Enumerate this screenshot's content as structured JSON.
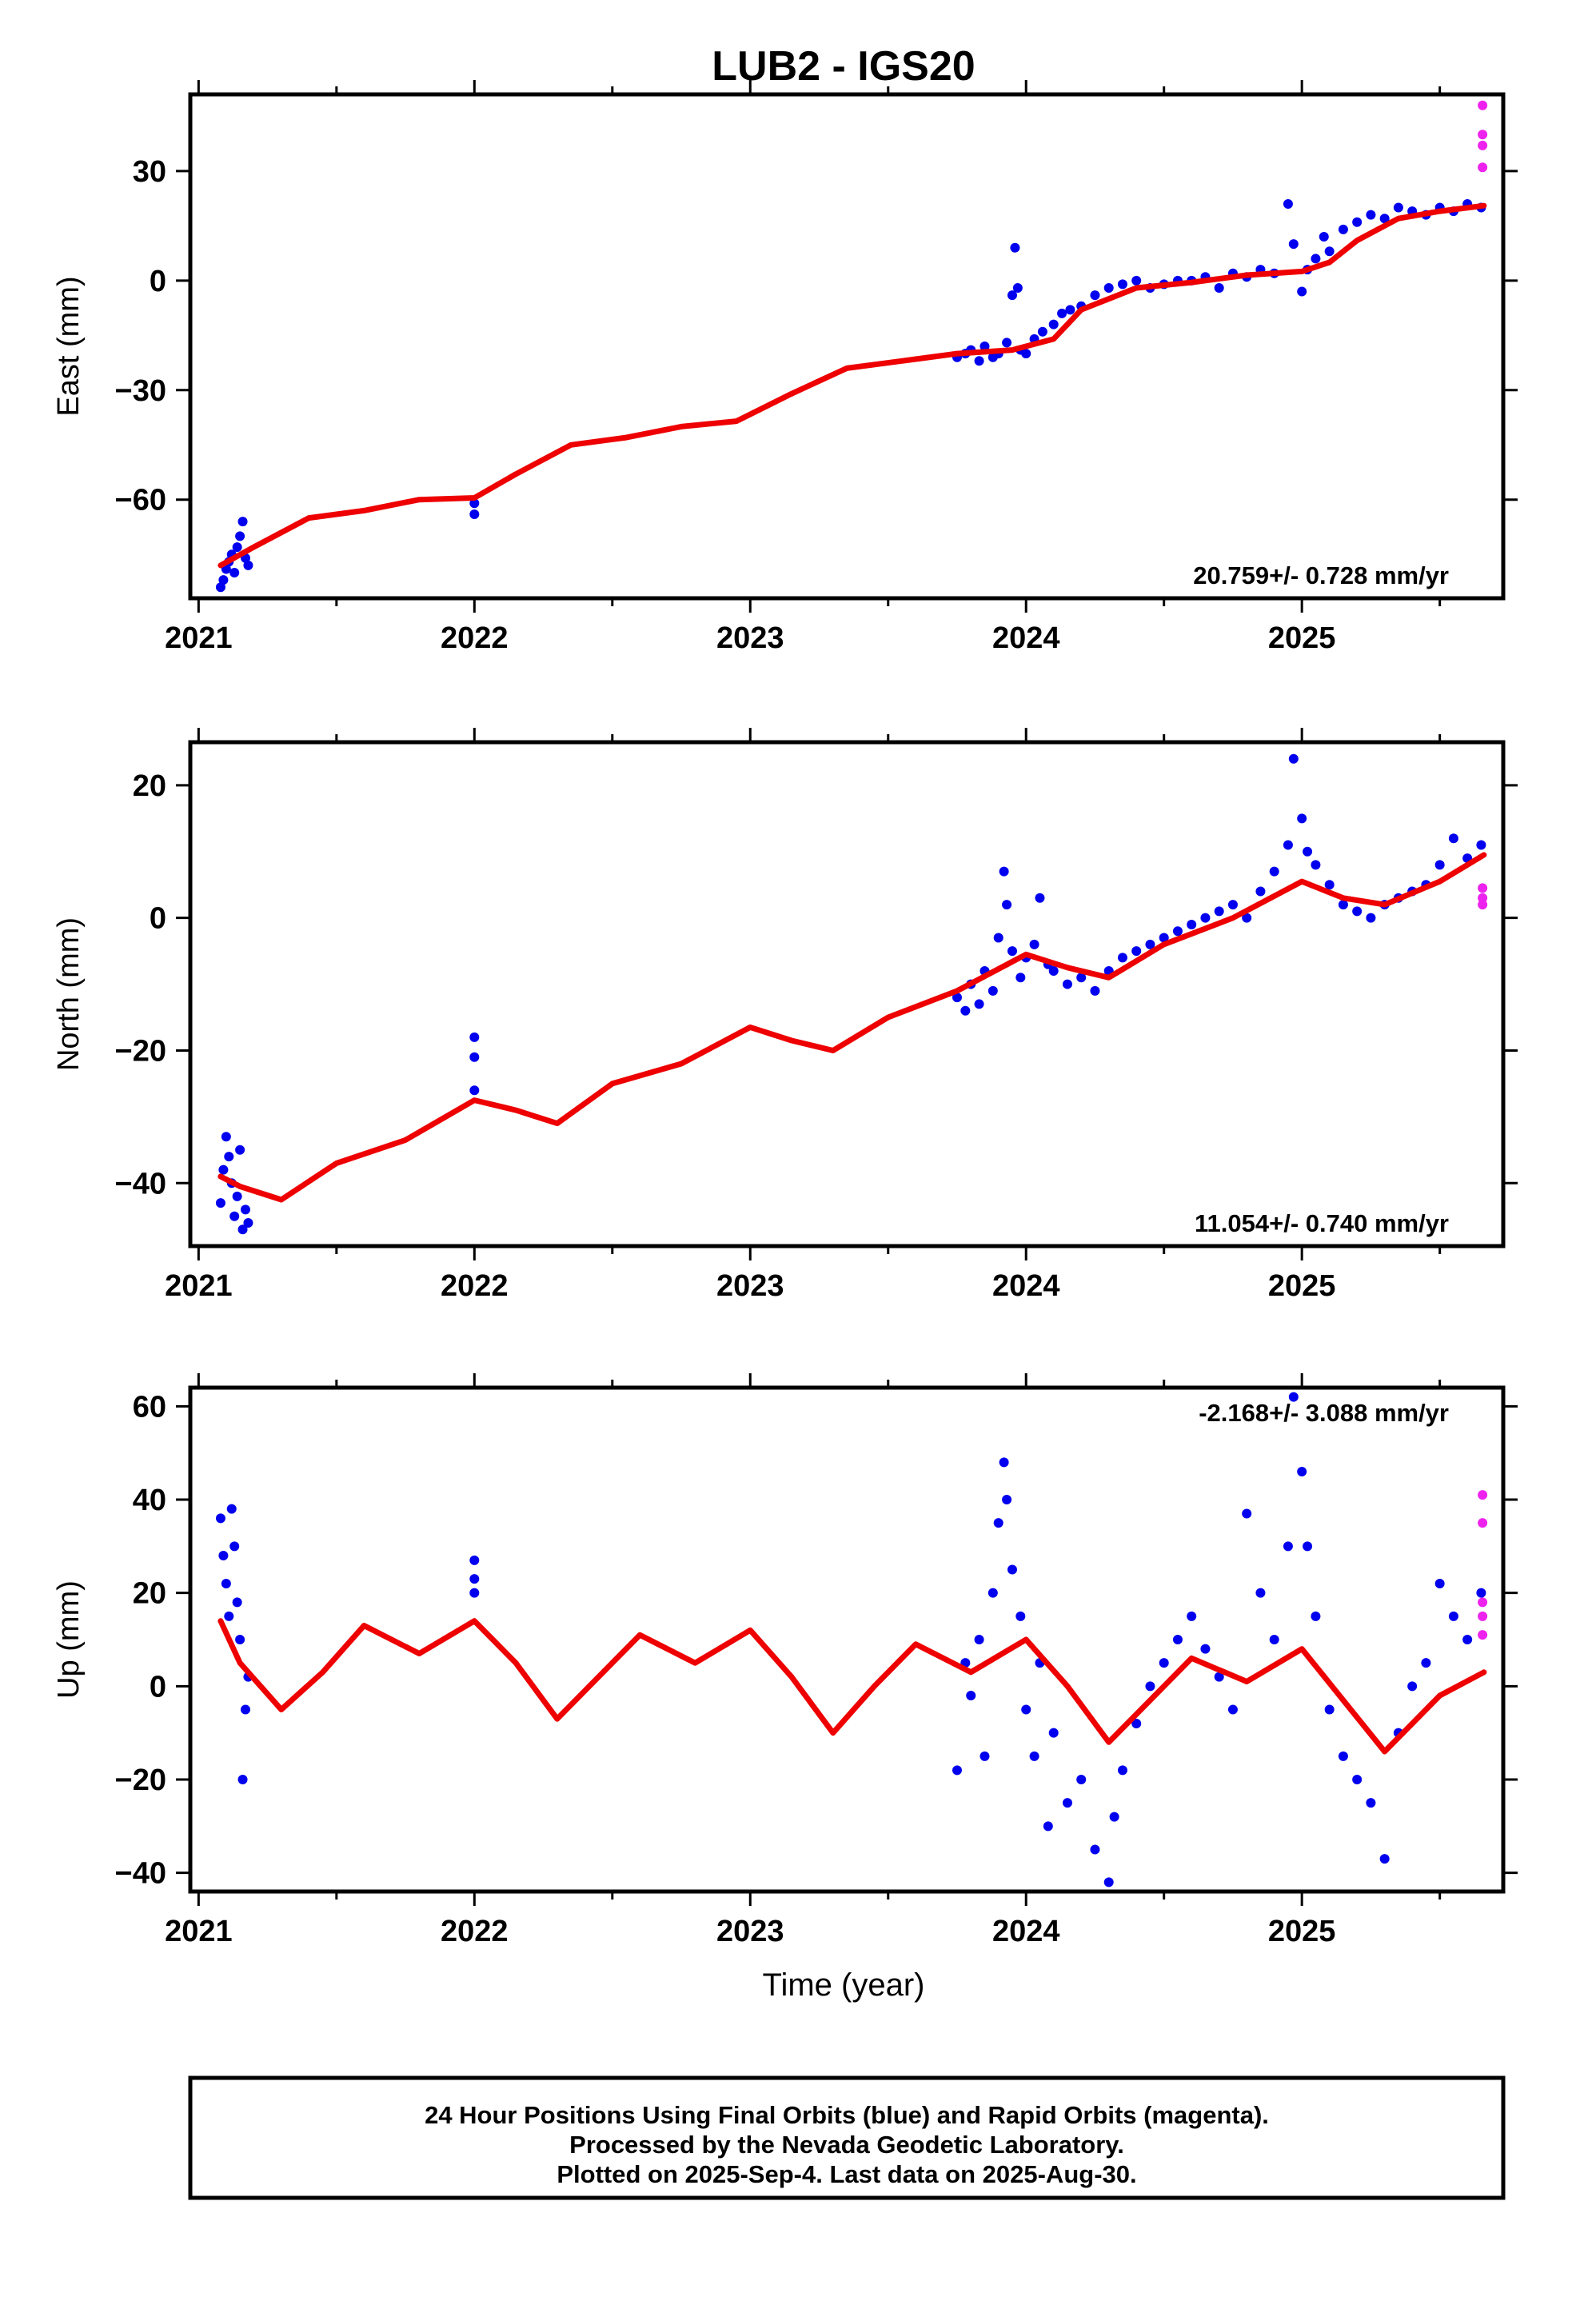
{
  "title": "LUB2 - IGS20",
  "footer": {
    "lines": [
      "24 Hour Positions Using Final Orbits (blue) and Rapid Orbits (magenta).",
      "Processed by the Nevada Geodetic Laboratory.",
      "Plotted on 2025-Sep-4. Last data on 2025-Aug-30."
    ]
  },
  "colors": {
    "final": "#0000ee",
    "rapid": "#ee22ee",
    "model": "#ee0000",
    "axis": "#000000"
  },
  "chart_data": [
    {
      "type": "scatter",
      "name": "east",
      "ylabel": "East (mm)",
      "xlabel": "",
      "xlim": [
        2020.97,
        2025.73
      ],
      "ylim": [
        -87,
        51
      ],
      "yticks": [
        "-60",
        "-30",
        "0",
        "30"
      ],
      "xticks": [
        "2021",
        "2022",
        "2023",
        "2024",
        "2025"
      ],
      "rate_label": "20.759+/- 0.728 mm/yr",
      "model": {
        "x": [
          2021.08,
          2021.2,
          2021.4,
          2021.6,
          2021.8,
          2022.0,
          2022.15,
          2022.35,
          2022.55,
          2022.75,
          2022.95,
          2023.15,
          2023.35,
          2023.55,
          2023.75,
          2023.95,
          2024.1,
          2024.2,
          2024.4,
          2024.6,
          2024.8,
          2025.0,
          2025.1,
          2025.2,
          2025.35,
          2025.5,
          2025.66
        ],
        "y": [
          -78,
          -73,
          -65,
          -63,
          -60,
          -59.5,
          -53,
          -45,
          -43,
          -40,
          -38.5,
          -31,
          -24,
          -22,
          -20,
          -19,
          -16,
          -8,
          -2,
          -0.5,
          1.5,
          2.5,
          5,
          11,
          17,
          19,
          20.5
        ]
      },
      "final_note": "blue points: 24h final-orbit positions",
      "final": [
        [
          2021.08,
          -84
        ],
        [
          2021.09,
          -82
        ],
        [
          2021.1,
          -79
        ],
        [
          2021.11,
          -77
        ],
        [
          2021.12,
          -75
        ],
        [
          2021.13,
          -80
        ],
        [
          2021.14,
          -73
        ],
        [
          2021.15,
          -70
        ],
        [
          2021.16,
          -66
        ],
        [
          2021.17,
          -76
        ],
        [
          2021.18,
          -78
        ],
        [
          2022.0,
          -61
        ],
        [
          2022.0,
          -64
        ],
        [
          2023.75,
          -21
        ],
        [
          2023.78,
          -20
        ],
        [
          2023.8,
          -19
        ],
        [
          2023.83,
          -22
        ],
        [
          2023.85,
          -18
        ],
        [
          2023.88,
          -21
        ],
        [
          2023.9,
          -20
        ],
        [
          2023.93,
          -17
        ],
        [
          2023.95,
          -4
        ],
        [
          2023.96,
          9
        ],
        [
          2023.97,
          -2
        ],
        [
          2023.98,
          -19
        ],
        [
          2024.0,
          -20
        ],
        [
          2024.03,
          -16
        ],
        [
          2024.06,
          -14
        ],
        [
          2024.1,
          -12
        ],
        [
          2024.13,
          -9
        ],
        [
          2024.16,
          -8
        ],
        [
          2024.2,
          -7
        ],
        [
          2024.25,
          -4
        ],
        [
          2024.3,
          -2
        ],
        [
          2024.35,
          -1
        ],
        [
          2024.4,
          0
        ],
        [
          2024.45,
          -2
        ],
        [
          2024.5,
          -1
        ],
        [
          2024.55,
          0
        ],
        [
          2024.6,
          0
        ],
        [
          2024.65,
          1
        ],
        [
          2024.7,
          -2
        ],
        [
          2024.75,
          2
        ],
        [
          2024.8,
          1
        ],
        [
          2024.85,
          3
        ],
        [
          2024.9,
          2
        ],
        [
          2024.95,
          21
        ],
        [
          2024.97,
          10
        ],
        [
          2025.0,
          -3
        ],
        [
          2025.02,
          3
        ],
        [
          2025.05,
          6
        ],
        [
          2025.08,
          12
        ],
        [
          2025.1,
          8
        ],
        [
          2025.15,
          14
        ],
        [
          2025.2,
          16
        ],
        [
          2025.25,
          18
        ],
        [
          2025.3,
          17
        ],
        [
          2025.35,
          20
        ],
        [
          2025.4,
          19
        ],
        [
          2025.45,
          18
        ],
        [
          2025.5,
          20
        ],
        [
          2025.55,
          19
        ],
        [
          2025.6,
          21
        ],
        [
          2025.65,
          20
        ]
      ],
      "rapid": [
        [
          2025.655,
          48
        ],
        [
          2025.655,
          40
        ],
        [
          2025.655,
          37
        ],
        [
          2025.655,
          31
        ]
      ]
    },
    {
      "type": "scatter",
      "name": "north",
      "ylabel": "North (mm)",
      "xlabel": "",
      "xlim": [
        2020.97,
        2025.73
      ],
      "ylim": [
        -49.5,
        26.5
      ],
      "yticks": [
        "-40",
        "-20",
        "0",
        "20"
      ],
      "xticks": [
        "2021",
        "2022",
        "2023",
        "2024",
        "2025"
      ],
      "rate_label": "11.054+/- 0.740 mm/yr",
      "model": {
        "x": [
          2021.08,
          2021.15,
          2021.3,
          2021.5,
          2021.75,
          2022.0,
          2022.15,
          2022.3,
          2022.5,
          2022.75,
          2023.0,
          2023.15,
          2023.3,
          2023.5,
          2023.75,
          2024.0,
          2024.15,
          2024.3,
          2024.5,
          2024.75,
          2025.0,
          2025.15,
          2025.3,
          2025.5,
          2025.66
        ],
        "y": [
          -39,
          -40.5,
          -42.5,
          -37,
          -33.5,
          -27.5,
          -29,
          -31,
          -25,
          -22,
          -16.5,
          -18.5,
          -20,
          -15,
          -11,
          -5.5,
          -7.5,
          -9,
          -4,
          0,
          5.5,
          3,
          2,
          5.5,
          9.5
        ]
      },
      "final": [
        [
          2021.08,
          -43
        ],
        [
          2021.09,
          -38
        ],
        [
          2021.1,
          -33
        ],
        [
          2021.11,
          -36
        ],
        [
          2021.12,
          -40
        ],
        [
          2021.13,
          -45
        ],
        [
          2021.14,
          -42
        ],
        [
          2021.15,
          -35
        ],
        [
          2021.16,
          -47
        ],
        [
          2021.17,
          -44
        ],
        [
          2021.18,
          -46
        ],
        [
          2022.0,
          -18
        ],
        [
          2022.0,
          -21
        ],
        [
          2022.0,
          -26
        ],
        [
          2023.75,
          -12
        ],
        [
          2023.78,
          -14
        ],
        [
          2023.8,
          -10
        ],
        [
          2023.83,
          -13
        ],
        [
          2023.85,
          -8
        ],
        [
          2023.88,
          -11
        ],
        [
          2023.9,
          -3
        ],
        [
          2023.92,
          7
        ],
        [
          2023.93,
          2
        ],
        [
          2023.95,
          -5
        ],
        [
          2023.98,
          -9
        ],
        [
          2024.0,
          -6
        ],
        [
          2024.03,
          -4
        ],
        [
          2024.05,
          3
        ],
        [
          2024.08,
          -7
        ],
        [
          2024.1,
          -8
        ],
        [
          2024.15,
          -10
        ],
        [
          2024.2,
          -9
        ],
        [
          2024.25,
          -11
        ],
        [
          2024.3,
          -8
        ],
        [
          2024.35,
          -6
        ],
        [
          2024.4,
          -5
        ],
        [
          2024.45,
          -4
        ],
        [
          2024.5,
          -3
        ],
        [
          2024.55,
          -2
        ],
        [
          2024.6,
          -1
        ],
        [
          2024.65,
          0
        ],
        [
          2024.7,
          1
        ],
        [
          2024.75,
          2
        ],
        [
          2024.8,
          0
        ],
        [
          2024.85,
          4
        ],
        [
          2024.9,
          7
        ],
        [
          2024.95,
          11
        ],
        [
          2024.97,
          24
        ],
        [
          2025.0,
          15
        ],
        [
          2025.02,
          10
        ],
        [
          2025.05,
          8
        ],
        [
          2025.1,
          5
        ],
        [
          2025.15,
          2
        ],
        [
          2025.2,
          1
        ],
        [
          2025.25,
          0
        ],
        [
          2025.3,
          2
        ],
        [
          2025.35,
          3
        ],
        [
          2025.4,
          4
        ],
        [
          2025.45,
          5
        ],
        [
          2025.5,
          8
        ],
        [
          2025.55,
          12
        ],
        [
          2025.6,
          9
        ],
        [
          2025.65,
          11
        ]
      ],
      "rapid": [
        [
          2025.655,
          4.5
        ],
        [
          2025.655,
          3
        ],
        [
          2025.655,
          2
        ]
      ]
    },
    {
      "type": "scatter",
      "name": "up",
      "ylabel": "Up (mm)",
      "xlabel": "Time (year)",
      "xlim": [
        2020.97,
        2025.73
      ],
      "ylim": [
        -44,
        64
      ],
      "yticks": [
        "-40",
        "-20",
        "0",
        "20",
        "40",
        "60"
      ],
      "xticks": [
        "2021",
        "2022",
        "2023",
        "2024",
        "2025"
      ],
      "rate_label": "-2.168+/- 3.088 mm/yr",
      "model": {
        "x": [
          2021.08,
          2021.15,
          2021.3,
          2021.45,
          2021.6,
          2021.8,
          2022.0,
          2022.15,
          2022.3,
          2022.45,
          2022.6,
          2022.8,
          2023.0,
          2023.15,
          2023.3,
          2023.45,
          2023.6,
          2023.8,
          2024.0,
          2024.15,
          2024.3,
          2024.45,
          2024.6,
          2024.8,
          2025.0,
          2025.15,
          2025.3,
          2025.5,
          2025.66
        ],
        "y": [
          14,
          5,
          -5,
          3,
          13,
          7,
          14,
          5,
          -7,
          2,
          11,
          5,
          12,
          2,
          -10,
          0,
          9,
          3,
          10,
          0,
          -12,
          -3,
          6,
          1,
          8,
          -3,
          -14,
          -2,
          3
        ]
      },
      "final": [
        [
          2021.08,
          36
        ],
        [
          2021.09,
          28
        ],
        [
          2021.1,
          22
        ],
        [
          2021.11,
          15
        ],
        [
          2021.12,
          38
        ],
        [
          2021.13,
          30
        ],
        [
          2021.14,
          18
        ],
        [
          2021.15,
          10
        ],
        [
          2021.16,
          -20
        ],
        [
          2021.17,
          -5
        ],
        [
          2021.18,
          2
        ],
        [
          2022.0,
          27
        ],
        [
          2022.0,
          23
        ],
        [
          2022.0,
          20
        ],
        [
          2023.75,
          -18
        ],
        [
          2023.78,
          5
        ],
        [
          2023.8,
          -2
        ],
        [
          2023.83,
          10
        ],
        [
          2023.85,
          -15
        ],
        [
          2023.88,
          20
        ],
        [
          2023.9,
          35
        ],
        [
          2023.92,
          48
        ],
        [
          2023.93,
          40
        ],
        [
          2023.95,
          25
        ],
        [
          2023.98,
          15
        ],
        [
          2024.0,
          -5
        ],
        [
          2024.03,
          -15
        ],
        [
          2024.05,
          5
        ],
        [
          2024.08,
          -30
        ],
        [
          2024.1,
          -10
        ],
        [
          2024.15,
          -25
        ],
        [
          2024.2,
          -20
        ],
        [
          2024.25,
          -35
        ],
        [
          2024.3,
          -42
        ],
        [
          2024.32,
          -28
        ],
        [
          2024.35,
          -18
        ],
        [
          2024.4,
          -8
        ],
        [
          2024.45,
          0
        ],
        [
          2024.5,
          5
        ],
        [
          2024.55,
          10
        ],
        [
          2024.6,
          15
        ],
        [
          2024.65,
          8
        ],
        [
          2024.7,
          2
        ],
        [
          2024.75,
          -5
        ],
        [
          2024.8,
          37
        ],
        [
          2024.85,
          20
        ],
        [
          2024.9,
          10
        ],
        [
          2024.95,
          30
        ],
        [
          2024.97,
          62
        ],
        [
          2025.0,
          46
        ],
        [
          2025.02,
          30
        ],
        [
          2025.05,
          15
        ],
        [
          2025.1,
          -5
        ],
        [
          2025.15,
          -15
        ],
        [
          2025.2,
          -20
        ],
        [
          2025.25,
          -25
        ],
        [
          2025.3,
          -37
        ],
        [
          2025.35,
          -10
        ],
        [
          2025.4,
          0
        ],
        [
          2025.45,
          5
        ],
        [
          2025.5,
          22
        ],
        [
          2025.55,
          15
        ],
        [
          2025.6,
          10
        ],
        [
          2025.65,
          20
        ]
      ],
      "rapid": [
        [
          2025.655,
          41
        ],
        [
          2025.655,
          35
        ],
        [
          2025.655,
          18
        ],
        [
          2025.655,
          15
        ],
        [
          2025.655,
          11
        ]
      ]
    }
  ]
}
